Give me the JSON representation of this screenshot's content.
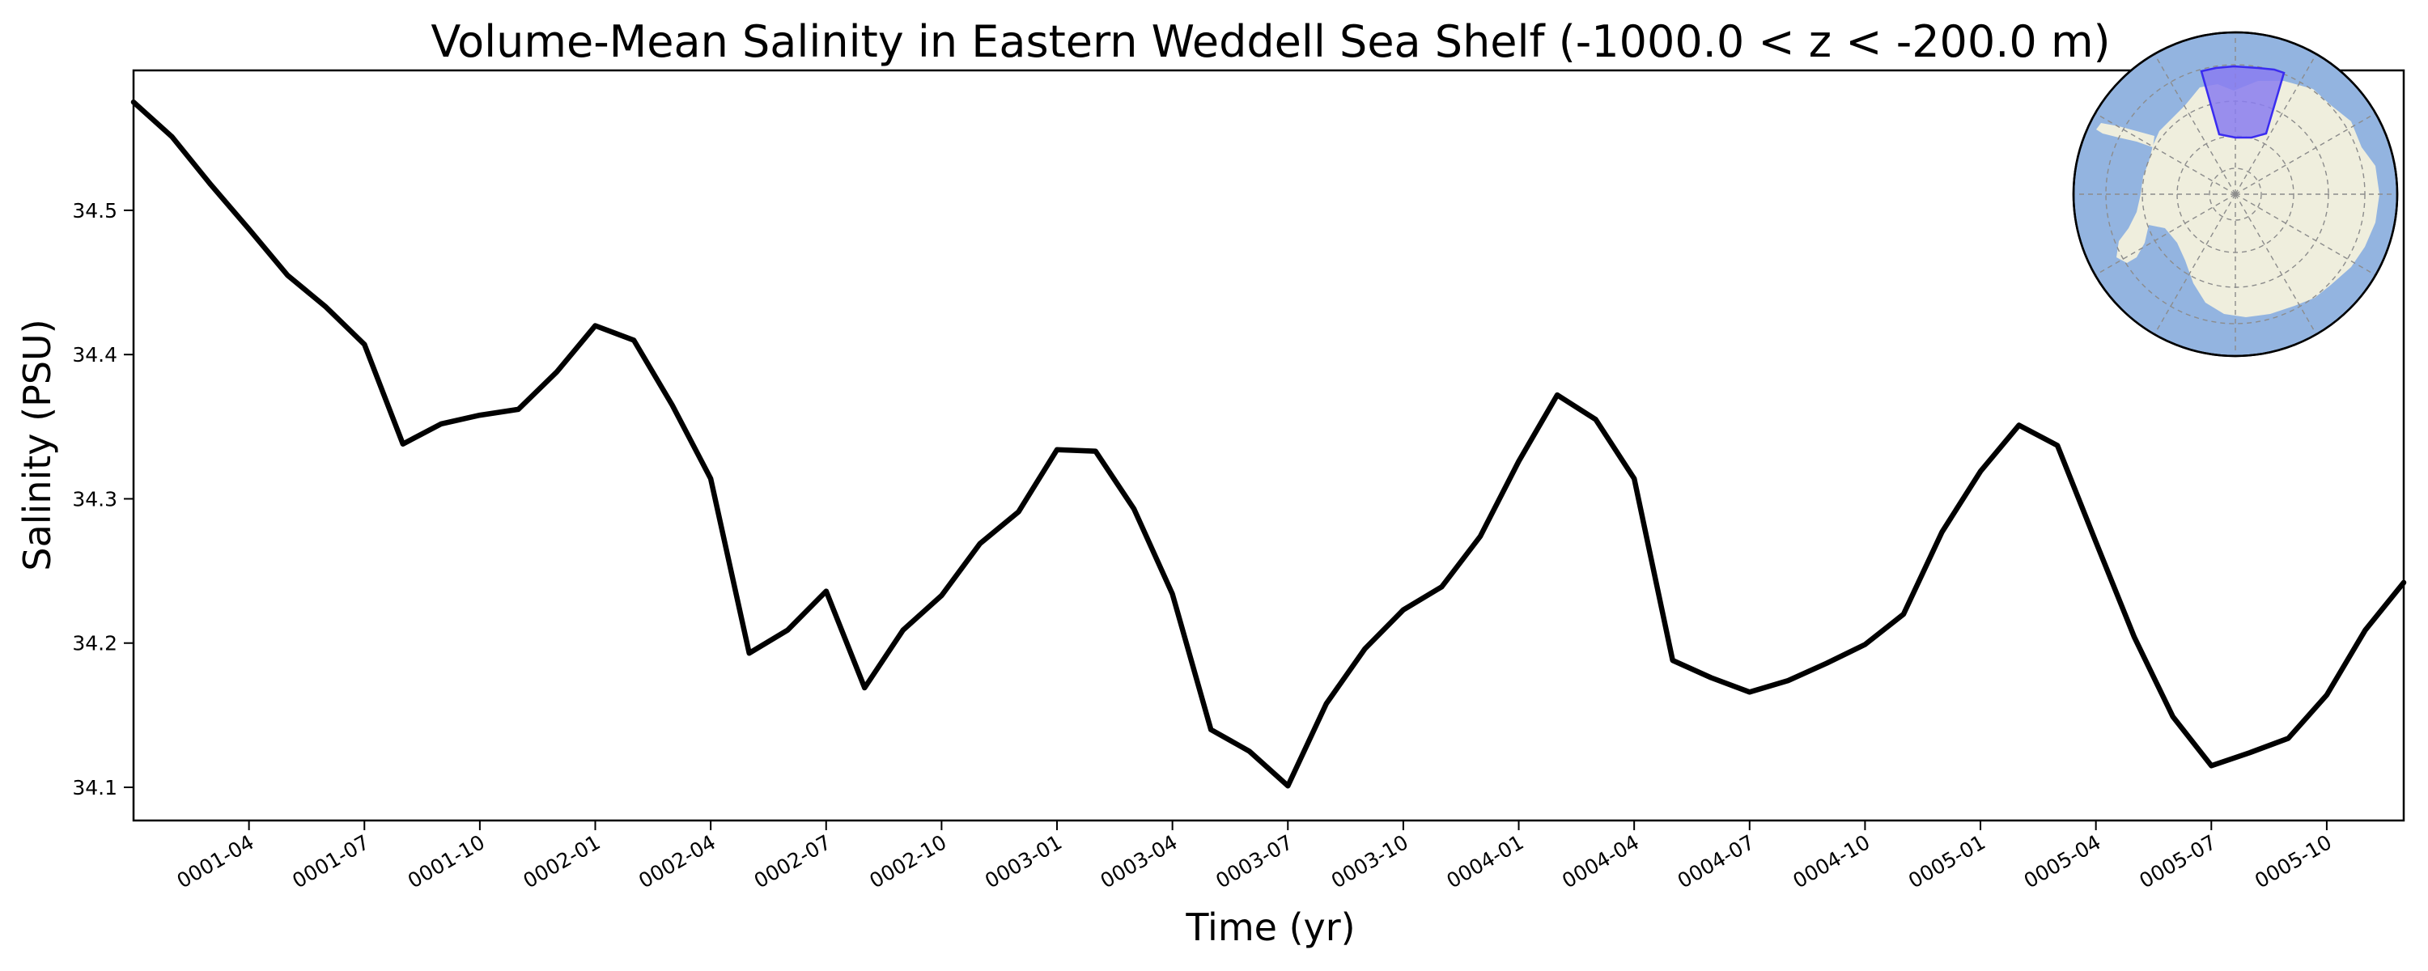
{
  "chart_data": {
    "type": "line",
    "title": "Volume-Mean Salinity in Eastern Weddell Sea Shelf (-1000.0 < z < -200.0 m)",
    "xlabel": "Time (yr)",
    "ylabel": "Salinity (PSU)",
    "x_ticks": [
      "0001-04",
      "0001-07",
      "0001-10",
      "0002-01",
      "0002-04",
      "0002-07",
      "0002-10",
      "0003-01",
      "0003-04",
      "0003-07",
      "0003-10",
      "0004-01",
      "0004-04",
      "0004-07",
      "0004-10",
      "0005-01",
      "0005-04",
      "0005-07",
      "0005-10"
    ],
    "y_ticks": [
      "34.1",
      "34.2",
      "34.3",
      "34.4",
      "34.5"
    ],
    "ylim": [
      34.077,
      34.597
    ],
    "xlim": [
      "0001-01",
      "0005-12"
    ],
    "grid": false,
    "series": [
      {
        "color": "#000000",
        "x": [
          "0001-01",
          "0001-02",
          "0001-03",
          "0001-04",
          "0001-05",
          "0001-06",
          "0001-07",
          "0001-08",
          "0001-09",
          "0001-10",
          "0001-11",
          "0001-12",
          "0002-01",
          "0002-02",
          "0002-03",
          "0002-04",
          "0002-05",
          "0002-06",
          "0002-07",
          "0002-08",
          "0002-09",
          "0002-10",
          "0002-11",
          "0002-12",
          "0003-01",
          "0003-02",
          "0003-03",
          "0003-04",
          "0003-05",
          "0003-06",
          "0003-07",
          "0003-08",
          "0003-09",
          "0003-10",
          "0003-11",
          "0003-12",
          "0004-01",
          "0004-02",
          "0004-03",
          "0004-04",
          "0004-05",
          "0004-06",
          "0004-07",
          "0004-08",
          "0004-09",
          "0004-10",
          "0004-11",
          "0004-12",
          "0005-01",
          "0005-02",
          "0005-03",
          "0005-04",
          "0005-05",
          "0005-06",
          "0005-07",
          "0005-08",
          "0005-09",
          "0005-10",
          "0005-11",
          "0005-12"
        ],
        "y": [
          34.575,
          34.551,
          34.518,
          34.487,
          34.455,
          34.433,
          34.407,
          34.338,
          34.352,
          34.358,
          34.362,
          34.388,
          34.42,
          34.41,
          34.365,
          34.314,
          34.193,
          34.209,
          34.236,
          34.169,
          34.209,
          34.233,
          34.269,
          34.291,
          34.334,
          34.333,
          34.293,
          34.234,
          34.14,
          34.125,
          34.101,
          34.158,
          34.196,
          34.223,
          34.239,
          34.274,
          34.326,
          34.372,
          34.355,
          34.314,
          34.188,
          34.176,
          34.166,
          34.174,
          34.186,
          34.199,
          34.22,
          34.277,
          34.319,
          34.351,
          34.337,
          34.27,
          34.204,
          34.149,
          34.115,
          34.124,
          34.134,
          34.164,
          34.209,
          34.242
        ]
      }
    ]
  },
  "inset_map": {
    "ocean_color": "#93b4e0",
    "land_color": "#efeedd",
    "region_color": "#8a7cf0"
  }
}
